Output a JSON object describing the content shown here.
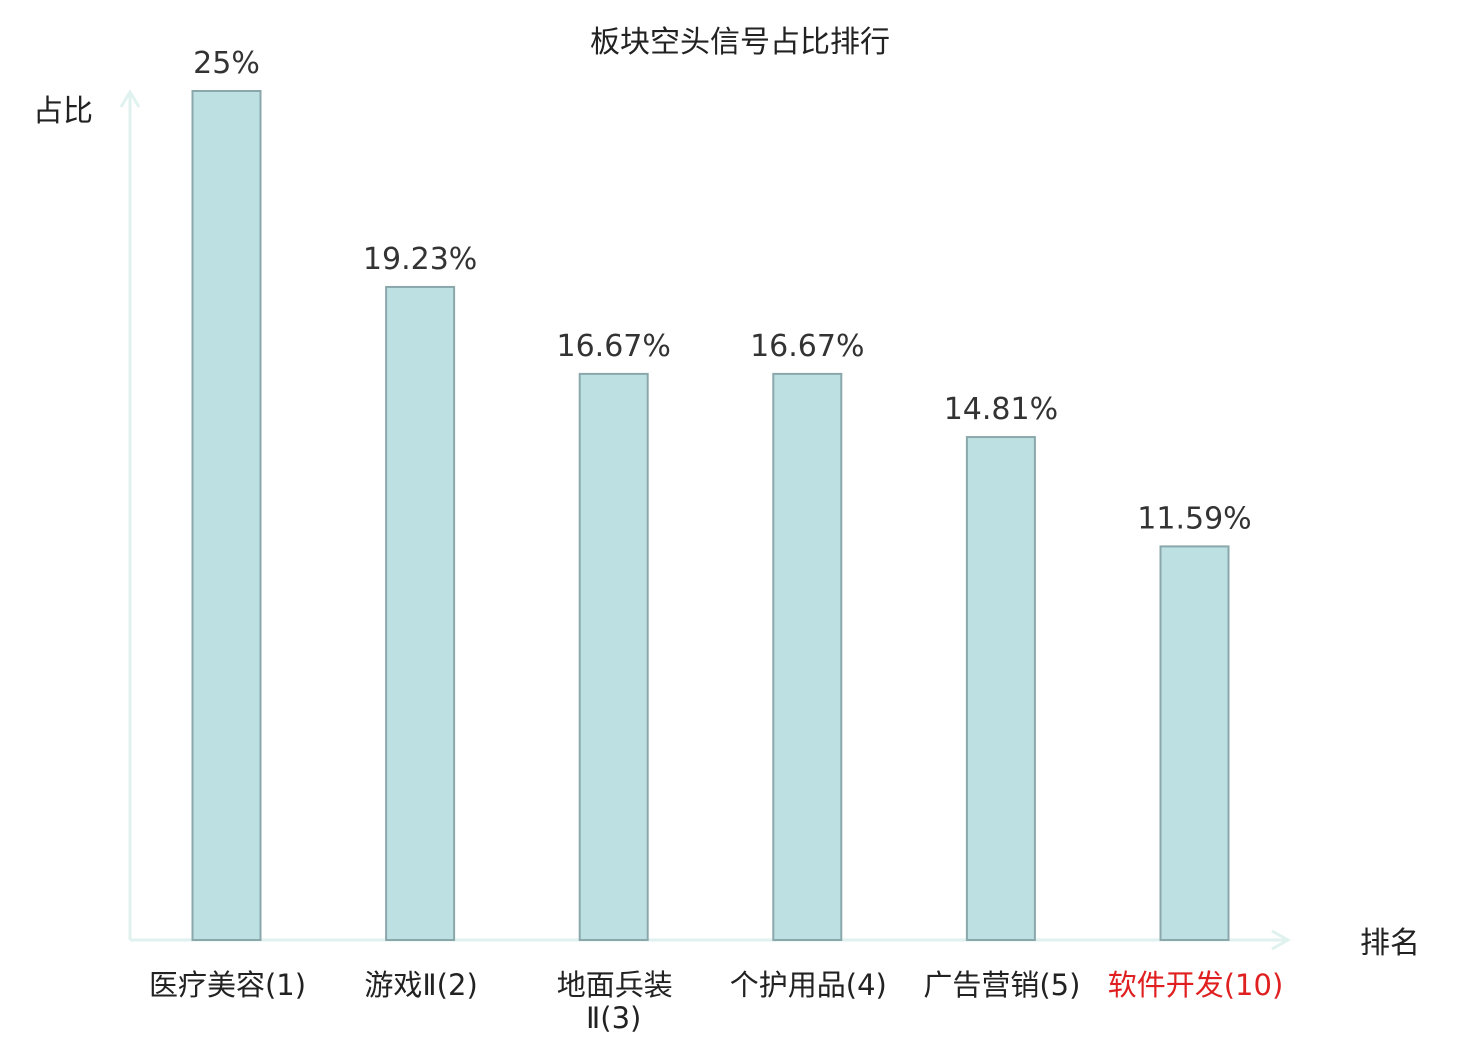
{
  "chart_data": {
    "type": "bar",
    "title": "板块空头信号占比排行",
    "xlabel": "排名",
    "ylabel": "占比",
    "ylim": [
      0,
      25
    ],
    "categories": [
      [
        "医疗美容(1)"
      ],
      [
        "游戏Ⅱ(2)"
      ],
      [
        "地面兵装",
        "Ⅱ(3)"
      ],
      [
        "个护用品(4)"
      ],
      [
        "广告营销(5)"
      ],
      [
        "软件开发(10)"
      ]
    ],
    "values": [
      25,
      19.23,
      16.67,
      16.67,
      14.81,
      11.59
    ],
    "value_labels": [
      "25%",
      "19.23%",
      "16.67%",
      "16.67%",
      "14.81%",
      "11.59%"
    ],
    "highlight_index": 5,
    "colors": {
      "bar_fill": "#bde0e3",
      "bar_stroke": "#8aa8ab",
      "axis": "#e0f2ef",
      "highlight_text": "#e02020",
      "text": "#222222"
    },
    "grid": false,
    "legend": "none"
  }
}
